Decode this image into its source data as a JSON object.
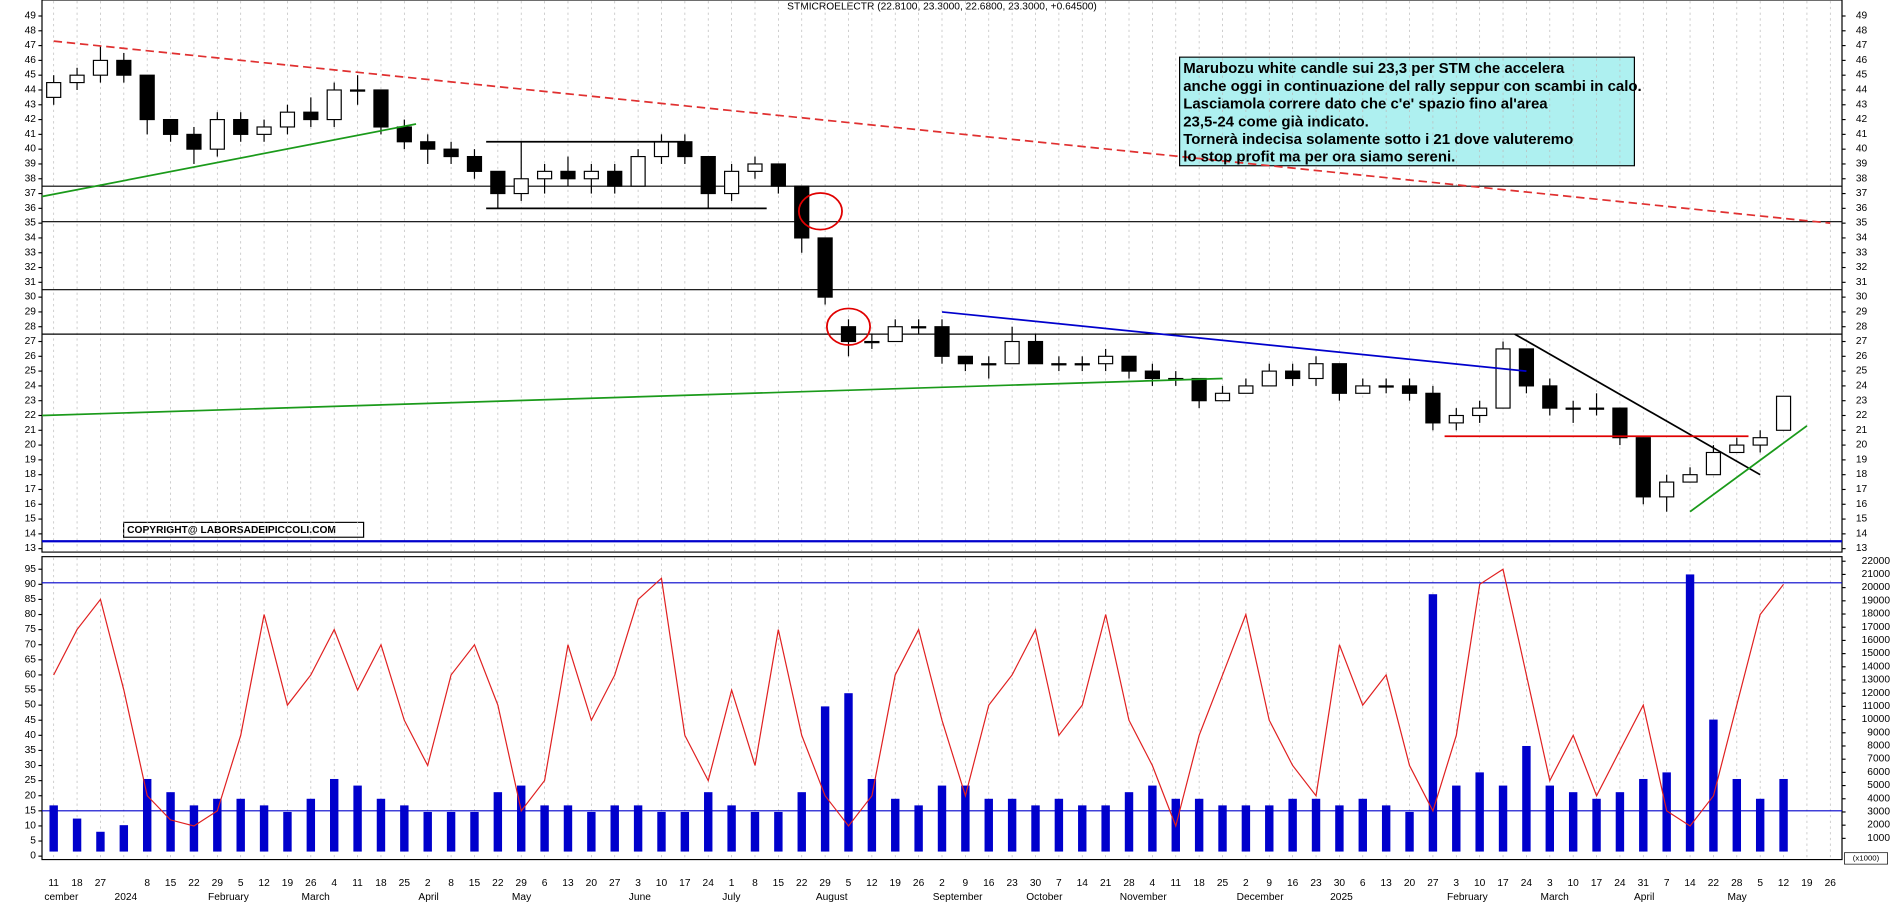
{
  "chart_data": [
    {
      "type": "candlestick",
      "title": "STMICROELECTR (22.8100, 23.3000, 22.6800, 23.3000, +0.64500)",
      "categories": [
        "11",
        "18",
        "27",
        null,
        "8",
        "15",
        "22",
        "29",
        "5",
        "12",
        "19",
        "26",
        "4",
        "11",
        "18",
        "25",
        "2",
        "8",
        "15",
        "22",
        "29",
        "6",
        "13",
        "20",
        "27",
        "3",
        "10",
        "17",
        "24",
        "1",
        "8",
        "15",
        "22",
        "29",
        "5",
        "12",
        "19",
        "26",
        "2",
        "9",
        "16",
        "23",
        "30",
        "7",
        "14",
        "21",
        "28",
        "4",
        "11",
        "18",
        "25",
        "2",
        "9",
        "16",
        "23",
        "30",
        "6",
        "13",
        "20",
        "27",
        "3",
        "10",
        "17",
        "24",
        "3",
        "10",
        "17",
        "24",
        "31",
        "7",
        "14",
        "22",
        "28",
        "5",
        "12",
        "19",
        "26"
      ],
      "month_labels": [
        "cember",
        null,
        null,
        "2024",
        null,
        null,
        null,
        "February",
        null,
        null,
        null,
        "March",
        null,
        null,
        null,
        null,
        "April",
        null,
        null,
        null,
        "May",
        null,
        null,
        null,
        null,
        "June",
        null,
        null,
        null,
        "July",
        null,
        null,
        null,
        "August",
        null,
        null,
        null,
        null,
        "September",
        null,
        null,
        null,
        "October",
        null,
        null,
        null,
        "November",
        null,
        null,
        null,
        null,
        "December",
        null,
        null,
        null,
        "2025",
        null,
        null,
        null,
        null,
        "February",
        null,
        null,
        null,
        "March",
        null,
        null,
        null,
        "April",
        null,
        null,
        null,
        "May",
        null,
        null,
        null,
        null
      ],
      "open": [
        43.5,
        44.5,
        45,
        46,
        45,
        42,
        41,
        40,
        42,
        41,
        41.5,
        42.5,
        42,
        44,
        44,
        41.5,
        40.5,
        40,
        39.5,
        38.5,
        37,
        38,
        38.5,
        38,
        38.5,
        37.5,
        39.5,
        40.5,
        39.5,
        37,
        38.5,
        39,
        37.5,
        34,
        28,
        27,
        27,
        28,
        28,
        26,
        25.5,
        25.5,
        27,
        25.5,
        25.5,
        25.5,
        26,
        25,
        24.5,
        24.5,
        23,
        23.5,
        24,
        25,
        24.5,
        25.5,
        23.5,
        24,
        24,
        23.5,
        21.5,
        22,
        22.5,
        26.5,
        24,
        22.5,
        22.5,
        22.5,
        20.5,
        16.5,
        17.5,
        18,
        19.5,
        20,
        21,
        null,
        null
      ],
      "high": [
        45,
        45.5,
        47,
        46.5,
        45,
        42,
        41.5,
        42.5,
        42.5,
        42,
        43,
        43.5,
        44.5,
        45,
        44,
        42,
        41,
        40.5,
        40,
        38.5,
        40.5,
        39,
        39.5,
        39,
        39,
        40,
        41,
        41,
        39.5,
        39,
        39.5,
        39,
        37.5,
        34,
        28.5,
        27.5,
        28.5,
        28.5,
        28.5,
        26,
        26,
        28,
        27.5,
        26,
        26,
        26.5,
        26,
        25.5,
        25,
        24.5,
        24,
        24.5,
        25.5,
        25.5,
        26,
        25.5,
        24.5,
        24.5,
        24.5,
        24,
        22.5,
        23,
        27,
        26.5,
        24.5,
        23,
        23.5,
        22.5,
        20.5,
        18,
        18.5,
        20,
        20.5,
        21,
        23.3,
        null,
        null
      ],
      "low": [
        43,
        44,
        44.5,
        44.5,
        41,
        40.5,
        39,
        39.5,
        40.5,
        40.5,
        41,
        41.5,
        41.5,
        43,
        41,
        40,
        39,
        39,
        38,
        36,
        36.5,
        37,
        37.5,
        37,
        37,
        37.5,
        39,
        39,
        36,
        36.5,
        38,
        37,
        33,
        29.5,
        26,
        26.5,
        27,
        27.5,
        25.5,
        25,
        24.5,
        25.5,
        25.5,
        25,
        25,
        25,
        24.5,
        24,
        24,
        22.5,
        23,
        23.5,
        24,
        24,
        24,
        23,
        23.5,
        23.5,
        23,
        21,
        21,
        21.5,
        22.5,
        23.5,
        22,
        21.5,
        22,
        20,
        16,
        15.5,
        17.5,
        18,
        19.5,
        19.5,
        21,
        null,
        null
      ],
      "close": [
        44.5,
        45,
        46,
        45,
        42,
        41,
        40,
        42,
        41,
        41.5,
        42.5,
        42,
        44,
        44,
        41.5,
        40.5,
        40,
        39.5,
        38.5,
        37,
        38,
        38.5,
        38,
        38.5,
        37.5,
        39.5,
        40.5,
        39.5,
        37,
        38.5,
        39,
        37.5,
        34,
        30,
        27,
        27,
        28,
        28,
        26,
        25.5,
        25.5,
        27,
        25.5,
        25.5,
        25.5,
        26,
        25,
        24.5,
        24.5,
        23,
        23.5,
        24,
        25,
        24.5,
        25.5,
        23.5,
        24,
        24,
        23.5,
        21.5,
        22,
        22.5,
        26.5,
        24,
        22.5,
        22.5,
        22.5,
        20.5,
        16.5,
        17.5,
        18,
        19.5,
        20,
        20.5,
        23.3,
        null,
        null
      ],
      "ylim": [
        13,
        49
      ],
      "yticks": [
        13,
        14,
        15,
        16,
        17,
        18,
        19,
        20,
        21,
        22,
        23,
        24,
        25,
        26,
        27,
        28,
        29,
        30,
        31,
        32,
        33,
        34,
        35,
        36,
        37,
        38,
        39,
        40,
        41,
        42,
        43,
        44,
        45,
        46,
        47,
        48,
        49
      ],
      "hlines": [
        {
          "value": 37.5,
          "color": "#000000"
        },
        {
          "value": 35.1,
          "color": "#000000"
        },
        {
          "value": 30.5,
          "color": "#000000"
        },
        {
          "value": 27.5,
          "color": "#000000"
        },
        {
          "value": 13.5,
          "color": "#0000cc"
        }
      ],
      "trendlines": [
        {
          "x0": 0,
          "y0": 47.3,
          "x1": 76,
          "y1": 35,
          "color": "#e03030",
          "dashed": true
        },
        {
          "x0": -0.5,
          "y0": 36.8,
          "x1": 15.5,
          "y1": 41.7,
          "color": "#1a9a1a",
          "dashed": false
        },
        {
          "x0": -0.5,
          "y0": 22,
          "x1": 50,
          "y1": 24.5,
          "color": "#1a9a1a",
          "dashed": false
        },
        {
          "x0": 38,
          "y0": 29,
          "x1": 63,
          "y1": 25,
          "color": "#0000cc",
          "dashed": false
        },
        {
          "x0": 62.5,
          "y0": 27.5,
          "x1": 73,
          "y1": 18,
          "color": "#000000",
          "dashed": false
        },
        {
          "x0": 70,
          "y0": 15.5,
          "x1": 75,
          "y1": 21.3,
          "color": "#1a9a1a",
          "dashed": false
        },
        {
          "x0": 59.5,
          "y0": 20.6,
          "x1": 72.5,
          "y1": 20.6,
          "color": "#e00000",
          "dashed": false
        },
        {
          "x0": 18.5,
          "y0": 40.5,
          "x1": 27,
          "y1": 40.5,
          "color": "#000000",
          "dashed": false
        },
        {
          "x0": 18.5,
          "y0": 36,
          "x1": 30.5,
          "y1": 36,
          "color": "#000000",
          "dashed": false
        }
      ],
      "circles": [
        {
          "x": 32.8,
          "y": 35.8
        },
        {
          "x": 34,
          "y": 28
        }
      ],
      "annotation": [
        "Marubozu white candle sui 23,3 per STM che accelera",
        "anche oggi in continuazione del rally seppur con scambi in calo.",
        "Lasciamola correre dato che c'e' spazio fino al'area",
        "23,5-24 come già indicato.",
        "Tornerà indecisa solamente sotto i 21 dove valuteremo",
        "lo stop profit ma per ora siamo sereni."
      ],
      "copyright": "COPYRIGHT@ LABORSADEIPICCOLI.COM"
    },
    {
      "type": "oscillator-volume",
      "oscillator": {
        "color": "#e02020",
        "values": [
          60,
          75,
          85,
          55,
          20,
          12,
          10,
          15,
          40,
          80,
          50,
          60,
          75,
          55,
          70,
          45,
          30,
          60,
          70,
          50,
          15,
          25,
          70,
          45,
          60,
          85,
          92,
          40,
          25,
          55,
          30,
          75,
          40,
          20,
          10,
          20,
          60,
          75,
          45,
          20,
          50,
          60,
          75,
          40,
          50,
          80,
          45,
          30,
          10,
          40,
          60,
          80,
          45,
          30,
          20,
          70,
          50,
          60,
          30,
          15,
          40,
          90,
          95,
          60,
          25,
          40,
          20,
          35,
          50,
          15,
          10,
          20,
          50,
          80,
          90,
          null,
          null
        ]
      },
      "volume": {
        "color": "#0000cc",
        "values": [
          3500,
          2500,
          1500,
          2000,
          5500,
          4500,
          3500,
          4000,
          4000,
          3500,
          3000,
          4000,
          5500,
          5000,
          4000,
          3500,
          3000,
          3000,
          3000,
          4500,
          5000,
          3500,
          3500,
          3000,
          3500,
          3500,
          3000,
          3000,
          4500,
          3500,
          3000,
          3000,
          4500,
          11000,
          12000,
          5500,
          4000,
          3500,
          5000,
          5000,
          4000,
          4000,
          3500,
          4000,
          3500,
          3500,
          4500,
          5000,
          4000,
          4000,
          3500,
          3500,
          3500,
          4000,
          4000,
          3500,
          4000,
          3500,
          3000,
          19500,
          5000,
          6000,
          5000,
          8000,
          5000,
          4500,
          4000,
          4500,
          5500,
          6000,
          21000,
          10000,
          5500,
          4000,
          5500,
          null,
          null
        ]
      },
      "ylim": [
        0,
        95
      ],
      "yticks": [
        0,
        5,
        10,
        15,
        20,
        25,
        30,
        35,
        40,
        45,
        50,
        55,
        60,
        65,
        70,
        75,
        80,
        85,
        90,
        95
      ],
      "y2lim": [
        0,
        22000
      ],
      "y2ticks": [
        1000,
        2000,
        3000,
        4000,
        5000,
        6000,
        7000,
        8000,
        9000,
        10000,
        11000,
        12000,
        13000,
        14000,
        15000,
        16000,
        17000,
        18000,
        19000,
        20000,
        21000,
        22000
      ],
      "hlines": [
        {
          "value": 15,
          "color": "#0000cc"
        },
        {
          "value": 90.5,
          "color": "#0000cc"
        }
      ],
      "volume_unit_label": "(x1000)"
    }
  ]
}
